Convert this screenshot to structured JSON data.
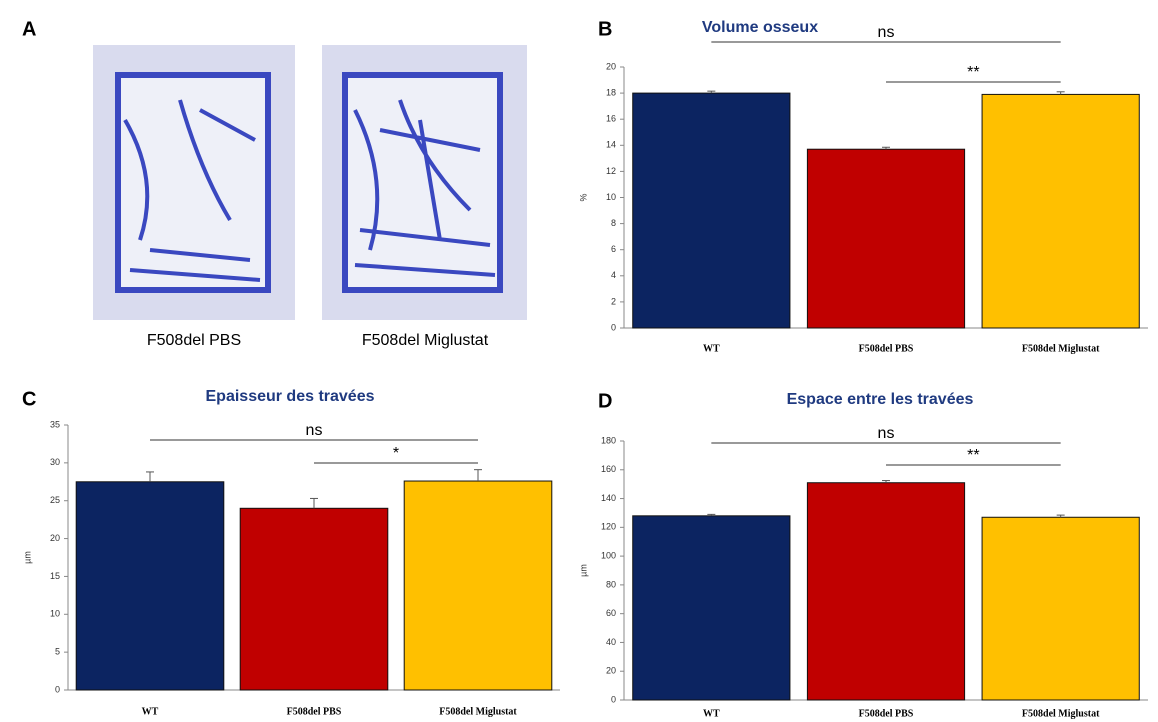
{
  "panel_a": {
    "letter": "A",
    "captions": [
      "F508del PBS",
      "F508del Miglustat"
    ]
  },
  "chart_data": [
    {
      "type": "bar",
      "letter": "B",
      "title": "Volume osseux",
      "ylabel": "%",
      "categories": [
        "WT",
        "F508del PBS",
        "F508del Miglustat"
      ],
      "values": [
        18.0,
        13.7,
        17.9
      ],
      "errors": [
        0.15,
        0.15,
        0.2
      ],
      "colors": [
        "#0c2461",
        "#c00000",
        "#ffc000"
      ],
      "ylim": [
        0,
        20
      ],
      "yticks": [
        0,
        2,
        4,
        6,
        8,
        10,
        12,
        14,
        16,
        18,
        20
      ],
      "annotations": [
        {
          "text": "ns",
          "from": 0,
          "to": 2
        },
        {
          "text": "**",
          "from": 1,
          "to": 2
        }
      ]
    },
    {
      "type": "bar",
      "letter": "C",
      "title": "Epaisseur des travées",
      "ylabel": "µm",
      "categories": [
        "WT",
        "F508del PBS",
        "F508del Miglustat"
      ],
      "values": [
        27.5,
        24.0,
        27.6
      ],
      "errors": [
        1.3,
        1.3,
        1.5
      ],
      "colors": [
        "#0c2461",
        "#c00000",
        "#ffc000"
      ],
      "ylim": [
        0,
        35
      ],
      "yticks": [
        0,
        5,
        10,
        15,
        20,
        25,
        30,
        35
      ],
      "annotations": [
        {
          "text": "ns",
          "from": 0,
          "to": 2
        },
        {
          "text": "*",
          "from": 1,
          "to": 2
        }
      ]
    },
    {
      "type": "bar",
      "letter": "D",
      "title": "Espace entre les travées",
      "ylabel": "µm",
      "categories": [
        "WT",
        "F508del PBS",
        "F508del Miglustat"
      ],
      "values": [
        128,
        151,
        127
      ],
      "errors": [
        1.0,
        1.5,
        1.5
      ],
      "colors": [
        "#0c2461",
        "#c00000",
        "#ffc000"
      ],
      "ylim": [
        0,
        180
      ],
      "yticks": [
        0,
        20,
        40,
        60,
        80,
        100,
        120,
        140,
        160,
        180
      ],
      "annotations": [
        {
          "text": "ns",
          "from": 0,
          "to": 2
        },
        {
          "text": "**",
          "from": 1,
          "to": 2
        }
      ]
    }
  ]
}
